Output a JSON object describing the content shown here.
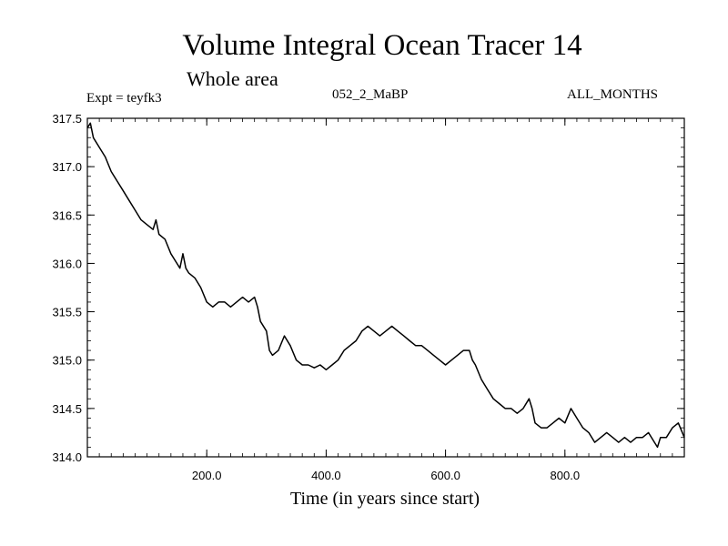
{
  "chart_data": {
    "type": "line",
    "title": "Volume Integral Ocean Tracer 14",
    "subtitle": "Whole area",
    "experiment": "Expt = teyfk3",
    "period": "052_2_MaBP",
    "months": "ALL_MONTHS",
    "xlabel": "Time (in years since start)",
    "ylabel": "",
    "xlim": [
      0,
      1000
    ],
    "ylim": [
      314.0,
      317.5
    ],
    "xticks": [
      200,
      400,
      600,
      800
    ],
    "xtick_labels": [
      "200.0",
      "400.0",
      "600.0",
      "800.0"
    ],
    "yticks": [
      314.0,
      314.5,
      315.0,
      315.5,
      316.0,
      316.5,
      317.0,
      317.5
    ],
    "ytick_labels": [
      "314.0",
      "314.5",
      "315.0",
      "315.5",
      "316.0",
      "316.5",
      "317.0",
      "317.5"
    ],
    "grid": false,
    "legend": "none",
    "series": [
      {
        "name": "Volume Integral Ocean Tracer 14",
        "color": "#000000",
        "x": [
          0,
          5,
          10,
          20,
          30,
          40,
          50,
          60,
          70,
          80,
          90,
          100,
          110,
          115,
          120,
          130,
          140,
          150,
          155,
          160,
          165,
          170,
          180,
          190,
          200,
          210,
          220,
          230,
          240,
          250,
          260,
          270,
          280,
          285,
          290,
          300,
          305,
          310,
          320,
          330,
          340,
          350,
          360,
          370,
          380,
          390,
          400,
          410,
          420,
          430,
          440,
          450,
          460,
          470,
          480,
          490,
          500,
          510,
          520,
          530,
          540,
          550,
          560,
          570,
          580,
          590,
          600,
          610,
          620,
          630,
          640,
          645,
          650,
          660,
          670,
          680,
          690,
          700,
          710,
          720,
          730,
          740,
          745,
          750,
          760,
          770,
          780,
          790,
          800,
          810,
          820,
          830,
          840,
          850,
          860,
          870,
          880,
          890,
          900,
          910,
          920,
          930,
          940,
          950,
          955,
          960,
          970,
          980,
          990,
          1000
        ],
        "values": [
          317.4,
          317.45,
          317.3,
          317.2,
          317.1,
          316.95,
          316.85,
          316.75,
          316.65,
          316.55,
          316.45,
          316.4,
          316.35,
          316.45,
          316.3,
          316.25,
          316.1,
          316.0,
          315.95,
          316.1,
          315.95,
          315.9,
          315.85,
          315.75,
          315.6,
          315.55,
          315.6,
          315.6,
          315.55,
          315.6,
          315.65,
          315.6,
          315.65,
          315.55,
          315.4,
          315.3,
          315.1,
          315.05,
          315.1,
          315.25,
          315.15,
          315.0,
          314.95,
          314.95,
          314.92,
          314.95,
          314.9,
          314.95,
          315.0,
          315.1,
          315.15,
          315.2,
          315.3,
          315.35,
          315.3,
          315.25,
          315.3,
          315.35,
          315.3,
          315.25,
          315.2,
          315.15,
          315.15,
          315.1,
          315.05,
          315.0,
          314.95,
          315.0,
          315.05,
          315.1,
          315.1,
          315.0,
          314.95,
          314.8,
          314.7,
          314.6,
          314.55,
          314.5,
          314.5,
          314.45,
          314.5,
          314.6,
          314.5,
          314.35,
          314.3,
          314.3,
          314.35,
          314.4,
          314.35,
          314.5,
          314.4,
          314.3,
          314.25,
          314.15,
          314.2,
          314.25,
          314.2,
          314.15,
          314.2,
          314.15,
          314.2,
          314.2,
          314.25,
          314.15,
          314.1,
          314.2,
          314.2,
          314.3,
          314.35,
          314.2
        ]
      }
    ]
  }
}
